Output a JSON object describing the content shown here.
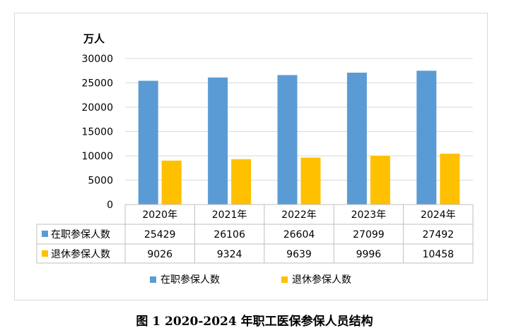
{
  "caption": "图 1   2020-2024 年职工医保参保人员结构",
  "chart_data": {
    "type": "bar",
    "title": "",
    "unit_label": "万人",
    "categories": [
      "2020年",
      "2021年",
      "2022年",
      "2023年",
      "2024年"
    ],
    "series": [
      {
        "name": "在职参保人数",
        "color": "#5B9BD5",
        "values": [
          25429,
          26106,
          26604,
          27099,
          27492
        ],
        "labels": [
          "25429",
          "26106",
          "26604",
          "27099",
          "27492"
        ]
      },
      {
        "name": "退休参保人数",
        "color": "#FFC000",
        "values": [
          9026,
          9324,
          9639,
          9996,
          10458
        ],
        "labels": [
          "9026",
          "9324",
          "9639",
          "9996",
          "10458"
        ]
      }
    ],
    "ylim": [
      0,
      30000
    ],
    "yticks": [
      "0",
      "5000",
      "10000",
      "15000",
      "20000",
      "25000",
      "30000"
    ],
    "ytick_values": [
      0,
      5000,
      10000,
      15000,
      20000,
      25000,
      30000
    ],
    "grid": true,
    "legend_position": "bottom",
    "data_table": true
  }
}
